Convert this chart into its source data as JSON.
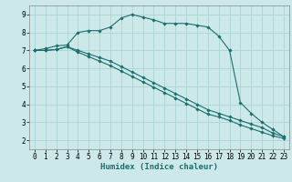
{
  "xlabel": "Humidex (Indice chaleur)",
  "bg_color": "#cce8e8",
  "grid_color": "#aad4d4",
  "line_color": "#1a6e6e",
  "xlim": [
    -0.5,
    23.5
  ],
  "ylim": [
    1.5,
    9.5
  ],
  "yticks": [
    2,
    3,
    4,
    5,
    6,
    7,
    8,
    9
  ],
  "xticks": [
    0,
    1,
    2,
    3,
    4,
    5,
    6,
    7,
    8,
    9,
    10,
    11,
    12,
    13,
    14,
    15,
    16,
    17,
    18,
    19,
    20,
    21,
    22,
    23
  ],
  "line1_x": [
    0,
    1,
    2,
    3,
    4,
    5,
    6,
    7,
    8,
    9,
    10,
    11,
    12,
    13,
    14,
    15,
    16,
    17,
    18,
    19,
    20,
    21,
    22,
    23
  ],
  "line1_y": [
    7.0,
    7.1,
    7.25,
    7.3,
    8.0,
    8.1,
    8.1,
    8.3,
    8.8,
    9.0,
    8.85,
    8.7,
    8.5,
    8.5,
    8.5,
    8.4,
    8.3,
    7.8,
    7.0,
    4.1,
    3.5,
    3.0,
    2.6,
    2.2
  ],
  "line2_x": [
    0,
    1,
    2,
    3,
    4,
    5,
    6,
    7,
    8,
    9,
    10,
    11,
    12,
    13,
    14,
    15,
    16,
    17,
    18,
    19,
    20,
    21,
    22,
    23
  ],
  "line2_y": [
    7.0,
    7.0,
    7.05,
    7.2,
    7.0,
    6.8,
    6.6,
    6.4,
    6.1,
    5.8,
    5.5,
    5.2,
    4.9,
    4.6,
    4.3,
    4.0,
    3.7,
    3.5,
    3.3,
    3.1,
    2.9,
    2.7,
    2.4,
    2.2
  ],
  "line3_x": [
    0,
    1,
    2,
    3,
    4,
    5,
    6,
    7,
    8,
    9,
    10,
    11,
    12,
    13,
    14,
    15,
    16,
    17,
    18,
    19,
    20,
    21,
    22,
    23
  ],
  "line3_y": [
    7.0,
    7.0,
    7.05,
    7.2,
    6.9,
    6.65,
    6.4,
    6.15,
    5.85,
    5.55,
    5.25,
    4.95,
    4.65,
    4.35,
    4.05,
    3.75,
    3.45,
    3.3,
    3.1,
    2.85,
    2.65,
    2.45,
    2.25,
    2.1
  ],
  "tick_fontsize": 5.5,
  "xlabel_fontsize": 6.5,
  "linewidth": 0.8,
  "markersize": 1.8
}
